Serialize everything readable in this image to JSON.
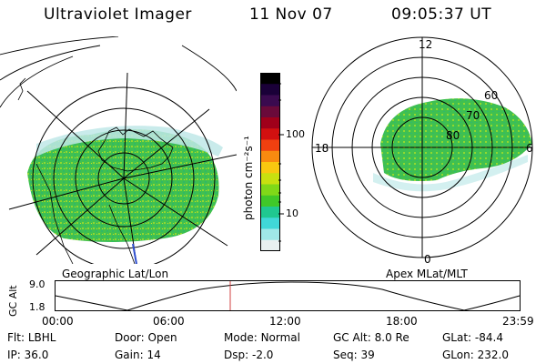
{
  "header": {
    "title": "Ultraviolet Imager",
    "date": "11 Nov 07",
    "time": "09:05:37 UT"
  },
  "geo_panel": {
    "label": "Geographic Lat/Lon"
  },
  "apex_panel": {
    "label": "Apex MLat/MLT",
    "mlt_labels": [
      "12",
      "18",
      "6",
      "0"
    ],
    "lat_labels": [
      "60",
      "70",
      "80"
    ]
  },
  "colorbar": {
    "unit_label": "photon cm⁻²s⁻¹",
    "ticks": [
      "100",
      "10"
    ],
    "colors": [
      "#000000",
      "#1a0038",
      "#3a0a4f",
      "#6a0a3a",
      "#a0001a",
      "#d21010",
      "#f04010",
      "#f88a10",
      "#f8c810",
      "#c8e010",
      "#80d818",
      "#40c828",
      "#20c890",
      "#40d8d8",
      "#a0e8e8",
      "#e8f0f0"
    ]
  },
  "altitude_plot": {
    "ylabel": "GC Alt",
    "y_ticks": [
      "9.0",
      "1.8"
    ],
    "x_ticks": [
      "00:00",
      "06:00",
      "12:00",
      "18:00",
      "23:59"
    ],
    "current_time_marker": "09:05",
    "marker_color": "#d04040"
  },
  "info": {
    "row1": [
      {
        "label": "Flt:",
        "value": "LBHL"
      },
      {
        "label": "Door:",
        "value": "Open"
      },
      {
        "label": "Mode:",
        "value": "Normal"
      },
      {
        "label": "GC Alt:",
        "value": "8.0 Re"
      },
      {
        "label": "GLat:",
        "value": "-84.4"
      }
    ],
    "row2": [
      {
        "label": "IP:",
        "value": "36.0"
      },
      {
        "label": "Gain:",
        "value": "14"
      },
      {
        "label": "Dsp:",
        "value": "-2.0"
      },
      {
        "label": "Seq:",
        "value": "39"
      },
      {
        "label": "GLon:",
        "value": "232.0"
      }
    ]
  }
}
